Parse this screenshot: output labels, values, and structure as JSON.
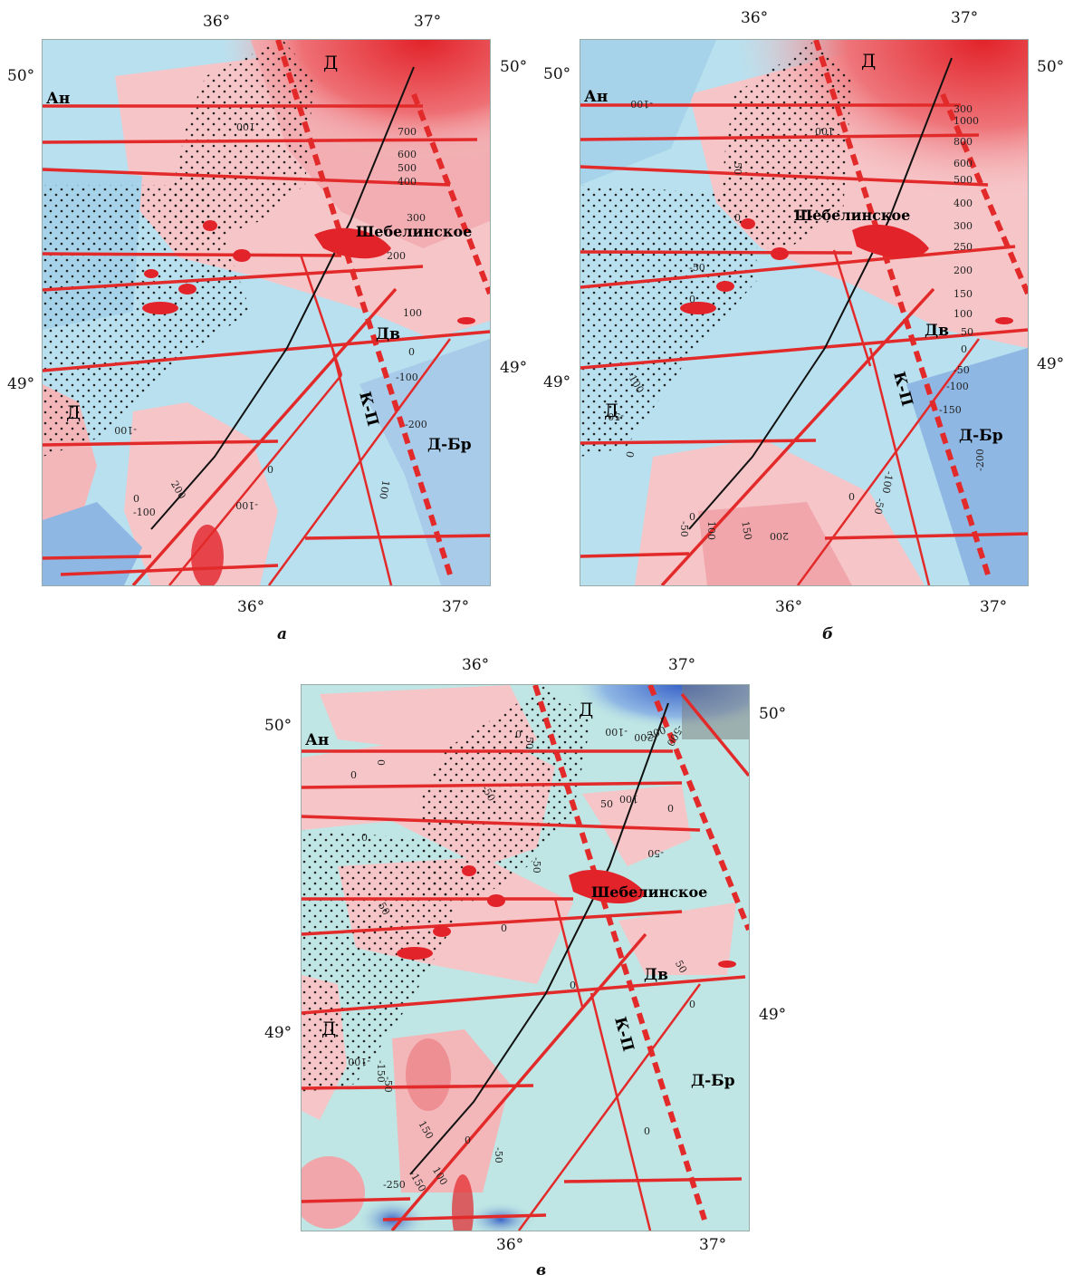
{
  "panels": [
    {
      "id": "a",
      "label": "а",
      "top_lon": [
        "36°",
        "37°"
      ],
      "bottom_lon": [
        "36°",
        "37°"
      ],
      "left_lat": [
        "50°",
        "49°"
      ],
      "right_lat": [
        "50°",
        "49°"
      ],
      "regions": {
        "an": "Ан",
        "d_top": "Д",
        "d_left": "Д",
        "dv": "Дв",
        "kp": "К-П",
        "dbr": "Д-Бр"
      },
      "field": "Шебелинское",
      "contours": [
        "100",
        "700",
        "600",
        "500",
        "400",
        "300",
        "200",
        "100",
        "0",
        "-100",
        "-200",
        "-100",
        "200",
        "0",
        "-100",
        "100",
        "0",
        "-100"
      ]
    },
    {
      "id": "b",
      "label": "б",
      "top_lon": [
        "36°",
        "37°"
      ],
      "bottom_lon": [
        "36°",
        "37°"
      ],
      "left_lat": [
        "50°",
        "49°"
      ],
      "right_lat": [
        "50°",
        "49°"
      ],
      "regions": {
        "an": "Ан",
        "d_top": "Д",
        "d_left": "Д",
        "dv": "Дв",
        "kp": "К-П",
        "dbr": "Д-Бр"
      },
      "field": "Шебелинское",
      "contours": [
        "-100",
        "100",
        "50",
        "0",
        "-50",
        "0",
        "-100",
        "-50",
        "0",
        "300",
        "1000",
        "800",
        "600",
        "500",
        "400",
        "300",
        "250",
        "200",
        "150",
        "100",
        "50",
        "0",
        "-50",
        "-100",
        "-150",
        "-200",
        "-100",
        "-50",
        "0",
        "-50",
        "100",
        "150",
        "200",
        "0"
      ]
    },
    {
      "id": "v",
      "label": "в",
      "top_lon": [
        "36°",
        "37°"
      ],
      "bottom_lon": [
        "36°",
        "37°"
      ],
      "left_lat": [
        "50°",
        "49°"
      ],
      "right_lat": [
        "50°",
        "49°"
      ],
      "regions": {
        "an": "Ан",
        "d_top": "Д",
        "d_left": "Д",
        "dv": "Дв",
        "kp": "К-П",
        "dbr": "Д-Бр"
      },
      "field": "Шебелинское",
      "contours": [
        "0",
        "0",
        "0",
        "0",
        "50",
        "-50",
        "-100",
        "-200",
        "-300",
        "-500",
        "50",
        "100",
        "0",
        "-50",
        "-50",
        "50",
        "0",
        "0",
        "50",
        "0",
        "-100",
        "-150",
        "-50",
        "150",
        "0",
        "-250",
        "-150",
        "100",
        "-50",
        "0"
      ]
    }
  ],
  "colors": {
    "sea_blue": "#b9e0ee",
    "pale_teal": "#bfe6e4",
    "pink": "#f6c5c8",
    "mid_red": "#ee8f94",
    "deep_red": "#e2232a",
    "blue": "#8fb7e4",
    "deep_blue": "#3a64c8",
    "fault_red": "#e32a2a"
  }
}
